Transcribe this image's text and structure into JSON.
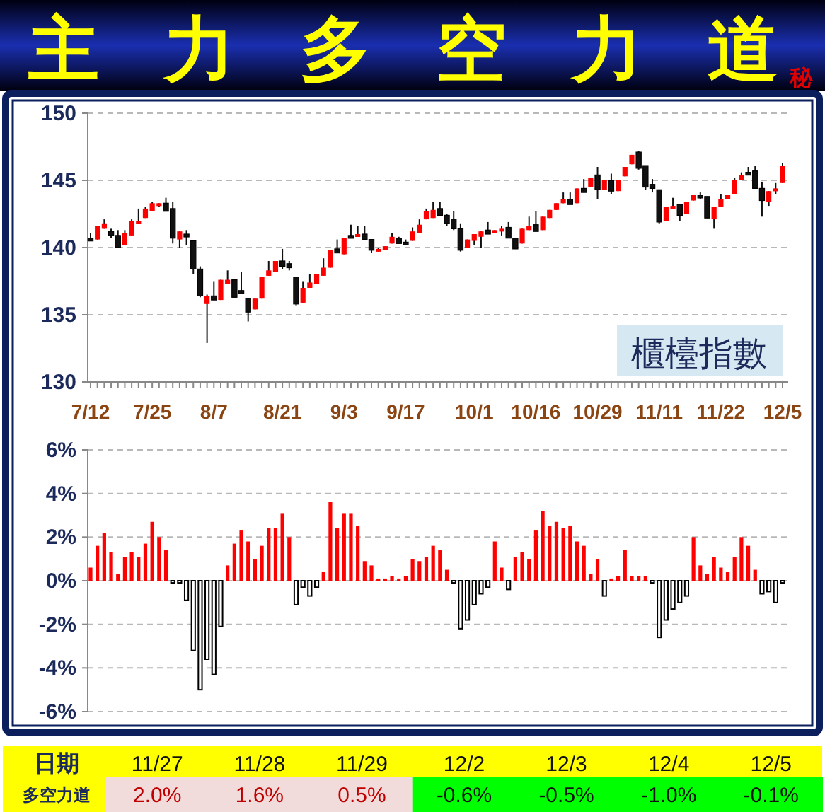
{
  "chart_data": [
    {
      "type": "candlestick",
      "title": "主力多空力道",
      "subtitle": "秘",
      "grid": "y",
      "ylim": [
        130,
        150
      ],
      "yticks": [
        130,
        135,
        140,
        145,
        150
      ],
      "annotations": [
        "櫃檯指數"
      ],
      "categories": [
        "7/12",
        null,
        null,
        null,
        null,
        null,
        null,
        null,
        null,
        "7/25",
        null,
        null,
        null,
        null,
        null,
        null,
        null,
        null,
        "8/7",
        null,
        null,
        null,
        null,
        null,
        null,
        null,
        null,
        null,
        "8/21",
        null,
        null,
        null,
        null,
        null,
        null,
        null,
        null,
        "9/3",
        null,
        null,
        null,
        null,
        null,
        null,
        null,
        null,
        "9/17",
        null,
        null,
        null,
        null,
        null,
        null,
        null,
        null,
        null,
        "10/1",
        null,
        null,
        null,
        null,
        null,
        null,
        null,
        null,
        "10/16",
        null,
        null,
        null,
        null,
        null,
        null,
        null,
        null,
        "10/29",
        null,
        null,
        null,
        null,
        null,
        null,
        null,
        null,
        "11/11",
        null,
        null,
        null,
        null,
        null,
        null,
        null,
        null,
        "11/22",
        null,
        null,
        null,
        null,
        null,
        null,
        null,
        null,
        "12/5"
      ],
      "ohlc": [
        [
          140.7,
          141.1,
          140.5,
          140.5
        ],
        [
          140.6,
          141.6,
          140.6,
          141.6
        ],
        [
          141.4,
          142.1,
          141.4,
          141.8
        ],
        [
          141.2,
          141.4,
          140.7,
          140.9
        ],
        [
          140.9,
          141.3,
          140.0,
          140.0
        ],
        [
          140.2,
          141.3,
          140.2,
          141.1
        ],
        [
          140.9,
          142.1,
          140.9,
          142.0
        ],
        [
          141.9,
          142.9,
          141.9,
          142.0
        ],
        [
          142.2,
          143.0,
          142.2,
          142.9
        ],
        [
          142.7,
          143.4,
          142.7,
          143.3
        ],
        [
          143.1,
          143.3,
          143.0,
          143.3
        ],
        [
          143.3,
          143.7,
          142.7,
          142.7
        ],
        [
          142.9,
          143.4,
          140.3,
          140.7
        ],
        [
          140.6,
          141.2,
          140.0,
          141.2
        ],
        [
          141.0,
          141.3,
          140.2,
          140.8
        ],
        [
          140.5,
          140.5,
          138.0,
          138.4
        ],
        [
          138.4,
          138.6,
          136.3,
          136.4
        ],
        [
          135.8,
          136.5,
          132.9,
          136.4
        ],
        [
          136.4,
          137.5,
          136.1,
          136.1
        ],
        [
          136.1,
          137.6,
          136.1,
          137.6
        ],
        [
          137.3,
          138.3,
          137.3,
          137.6
        ],
        [
          137.6,
          137.6,
          136.3,
          136.3
        ],
        [
          136.8,
          138.2,
          136.6,
          136.7
        ],
        [
          136.2,
          136.2,
          134.5,
          135.2
        ],
        [
          135.4,
          136.2,
          135.4,
          136.2
        ],
        [
          136.2,
          137.8,
          136.2,
          137.8
        ],
        [
          137.9,
          139.0,
          137.9,
          138.3
        ],
        [
          138.2,
          139.0,
          138.2,
          139.0
        ],
        [
          139.0,
          139.9,
          138.4,
          138.6
        ],
        [
          138.8,
          139.0,
          138.3,
          138.5
        ],
        [
          137.8,
          137.8,
          135.7,
          135.8
        ],
        [
          135.9,
          137.5,
          135.9,
          137.0
        ],
        [
          137.0,
          138.0,
          137.0,
          137.4
        ],
        [
          137.3,
          138.0,
          137.3,
          138.0
        ],
        [
          137.9,
          139.2,
          137.9,
          138.5
        ],
        [
          138.5,
          139.8,
          138.5,
          139.8
        ],
        [
          139.9,
          140.6,
          139.6,
          139.6
        ],
        [
          139.5,
          140.7,
          139.5,
          140.7
        ],
        [
          140.9,
          141.7,
          140.7,
          140.7
        ],
        [
          140.8,
          141.6,
          140.8,
          141.0
        ],
        [
          141.0,
          141.6,
          140.6,
          140.6
        ],
        [
          140.6,
          140.6,
          139.6,
          139.8
        ],
        [
          139.8,
          140.0,
          139.7,
          139.9
        ],
        [
          139.8,
          140.1,
          139.8,
          140.1
        ],
        [
          140.3,
          141.1,
          140.3,
          140.8
        ],
        [
          140.7,
          140.8,
          140.3,
          140.3
        ],
        [
          140.4,
          140.6,
          140.2,
          140.3
        ],
        [
          140.5,
          141.5,
          140.5,
          141.2
        ],
        [
          141.1,
          142.1,
          141.1,
          141.7
        ],
        [
          142.1,
          142.9,
          142.1,
          142.7
        ],
        [
          142.2,
          143.4,
          142.2,
          142.8
        ],
        [
          142.9,
          143.4,
          142.4,
          142.4
        ],
        [
          142.4,
          142.5,
          141.6,
          141.8
        ],
        [
          142.1,
          142.7,
          141.3,
          141.4
        ],
        [
          141.4,
          141.8,
          139.7,
          139.8
        ],
        [
          140.0,
          140.6,
          140.0,
          140.6
        ],
        [
          140.5,
          141.0,
          140.2,
          141.0
        ],
        [
          140.8,
          141.2,
          140.0,
          141.2
        ],
        [
          141.3,
          141.9,
          141.0,
          141.0
        ],
        [
          141.1,
          141.3,
          141.1,
          141.3
        ],
        [
          141.2,
          141.6,
          140.9,
          141.4
        ],
        [
          141.5,
          141.9,
          140.7,
          140.7
        ],
        [
          140.7,
          140.7,
          139.9,
          139.9
        ],
        [
          140.3,
          141.4,
          140.3,
          141.4
        ],
        [
          141.3,
          142.3,
          141.3,
          141.6
        ],
        [
          141.7,
          142.7,
          141.2,
          141.2
        ],
        [
          141.3,
          142.3,
          141.3,
          142.3
        ],
        [
          142.2,
          142.8,
          142.2,
          142.8
        ],
        [
          142.8,
          143.3,
          142.8,
          143.3
        ],
        [
          143.3,
          144.1,
          143.3,
          143.6
        ],
        [
          143.6,
          144.1,
          143.2,
          143.2
        ],
        [
          143.3,
          144.4,
          143.3,
          144.4
        ],
        [
          144.4,
          145.1,
          144.1,
          144.1
        ],
        [
          144.5,
          145.2,
          144.5,
          145.2
        ],
        [
          145.4,
          146.0,
          143.6,
          144.3
        ],
        [
          144.3,
          145.0,
          144.3,
          145.0
        ],
        [
          145.0,
          145.5,
          144.0,
          144.2
        ],
        [
          144.2,
          145.0,
          144.2,
          145.0
        ],
        [
          145.3,
          146.0,
          145.3,
          146.0
        ],
        [
          146.2,
          146.9,
          146.2,
          146.9
        ],
        [
          147.1,
          147.2,
          145.8,
          145.9
        ],
        [
          146.1,
          146.1,
          144.3,
          144.5
        ],
        [
          144.7,
          145.1,
          144.1,
          144.4
        ],
        [
          144.3,
          144.3,
          141.8,
          141.9
        ],
        [
          142.0,
          143.0,
          142.0,
          143.0
        ],
        [
          142.9,
          143.7,
          142.9,
          143.1
        ],
        [
          143.2,
          143.2,
          142.0,
          142.4
        ],
        [
          142.5,
          143.4,
          142.5,
          143.4
        ],
        [
          143.5,
          143.9,
          143.5,
          143.9
        ],
        [
          143.9,
          144.1,
          143.6,
          143.7
        ],
        [
          143.8,
          143.8,
          142.2,
          142.2
        ],
        [
          142.1,
          143.0,
          141.4,
          143.0
        ],
        [
          143.0,
          144.0,
          143.0,
          143.6
        ],
        [
          143.6,
          143.9,
          143.6,
          143.9
        ],
        [
          144.0,
          145.2,
          144.0,
          145.0
        ],
        [
          145.0,
          145.6,
          145.0,
          145.4
        ],
        [
          145.6,
          146.0,
          145.5,
          145.5
        ],
        [
          145.7,
          146.1,
          144.4,
          144.4
        ],
        [
          144.4,
          144.9,
          142.3,
          143.5
        ],
        [
          143.4,
          144.2,
          143.1,
          144.2
        ],
        [
          144.2,
          144.8,
          144.0,
          144.4
        ],
        [
          144.8,
          146.3,
          144.8,
          146.1
        ]
      ]
    },
    {
      "type": "bar",
      "grid": "y",
      "ylim": [
        -6,
        6
      ],
      "yticks": [
        {
          "value": -6,
          "label": "-6%"
        },
        {
          "value": -4,
          "label": "-4%"
        },
        {
          "value": -2,
          "label": "-2%"
        },
        {
          "value": 0,
          "label": "0%"
        },
        {
          "value": 2,
          "label": "2%"
        },
        {
          "value": 4,
          "label": "4%"
        },
        {
          "value": 6,
          "label": "6%"
        }
      ],
      "categories": [
        null,
        null,
        null,
        null,
        null,
        null,
        null,
        null,
        null,
        null,
        null,
        null,
        null,
        null,
        null,
        null,
        null,
        null,
        null,
        null,
        null,
        null,
        null,
        null,
        null,
        null,
        null,
        null,
        null,
        null,
        null,
        null,
        null,
        null,
        null,
        null,
        null,
        null,
        null,
        null,
        null,
        null,
        null,
        null,
        null,
        null,
        null,
        null,
        null,
        null,
        null,
        null,
        null,
        null,
        null,
        null,
        null,
        null,
        null,
        null,
        null,
        null,
        null,
        null,
        null,
        null,
        null,
        null,
        null,
        null,
        null,
        null,
        null,
        null,
        null,
        null,
        null,
        null,
        null,
        null,
        null,
        null,
        null,
        null,
        null,
        null,
        null,
        null,
        null,
        null,
        null,
        null,
        null,
        null,
        null,
        null,
        null,
        null,
        null,
        null,
        null,
        null
      ],
      "values": [
        0.6,
        1.6,
        2.2,
        1.3,
        0.3,
        1.1,
        1.3,
        1.1,
        1.7,
        2.7,
        2.0,
        1.4,
        -0.1,
        -0.1,
        -0.9,
        -3.2,
        -5.0,
        -3.6,
        -4.3,
        -2.1,
        0.7,
        1.7,
        2.3,
        1.8,
        1.0,
        1.6,
        2.4,
        2.4,
        3.1,
        2.0,
        -1.1,
        -0.3,
        -0.7,
        -0.3,
        0.4,
        3.6,
        2.4,
        3.1,
        3.1,
        2.5,
        0.9,
        0.7,
        0.1,
        0.1,
        0.2,
        0.1,
        0.2,
        1.0,
        0.9,
        1.1,
        1.6,
        1.4,
        0.5,
        -0.1,
        -2.2,
        -1.8,
        -1.1,
        -0.6,
        -0.3,
        1.8,
        0.6,
        -0.4,
        1.1,
        1.3,
        1.0,
        2.3,
        3.2,
        2.5,
        2.7,
        2.4,
        2.5,
        1.8,
        1.6,
        0.3,
        1.0,
        -0.7,
        0.1,
        0.2,
        1.4,
        0.2,
        0.2,
        0.2,
        -0.1,
        -2.6,
        -1.8,
        -1.3,
        -1.0,
        -0.7,
        2.0,
        0.7,
        0.3,
        1.1,
        0.6,
        0.4,
        1.1,
        2.0,
        1.6,
        0.5,
        -0.6,
        -0.5,
        -1.0,
        -0.1
      ]
    },
    {
      "type": "other",
      "xlabel": "日期",
      "ylabel": "多空力道",
      "categories": [
        "11/27",
        "11/28",
        "11/29",
        "12/2",
        "12/3",
        "12/4",
        "12/5"
      ],
      "values": [
        2.0,
        1.6,
        0.5,
        -0.6,
        -0.5,
        -1.0,
        -0.1
      ],
      "value_labels": [
        "2.0%",
        "1.6%",
        "0.5%",
        "-0.6%",
        "-0.5%",
        "-1.0%",
        "-0.1%"
      ]
    }
  ]
}
